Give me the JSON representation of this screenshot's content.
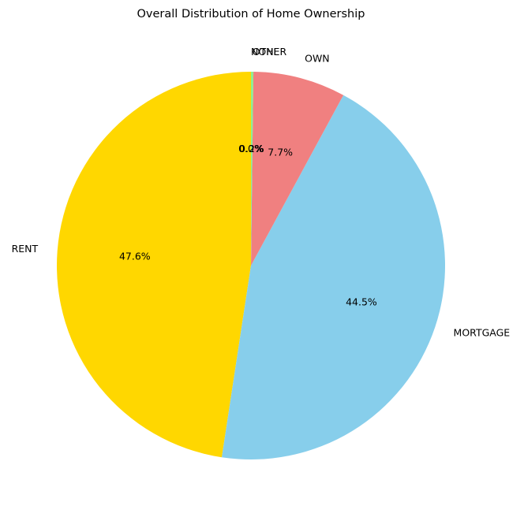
{
  "chart_data": {
    "type": "pie",
    "title": "Overall Distribution of Home Ownership",
    "slices": [
      {
        "label": "RENT",
        "value": 47.6,
        "pct_label": "47.6%",
        "color": "#FFD700"
      },
      {
        "label": "MORTGAGE",
        "value": 44.5,
        "pct_label": "44.5%",
        "color": "#87CEEB"
      },
      {
        "label": "OWN",
        "value": 7.7,
        "pct_label": "7.7%",
        "color": "#F08080"
      },
      {
        "label": "OTHER",
        "value": 0.2,
        "pct_label": "0.2%",
        "color": "#90EE90"
      },
      {
        "label": "NONE",
        "value": 0.0,
        "pct_label": "0.0%",
        "color": "#DDA0DD"
      }
    ],
    "start_angle_deg": 90,
    "direction": "counterclockwise"
  }
}
